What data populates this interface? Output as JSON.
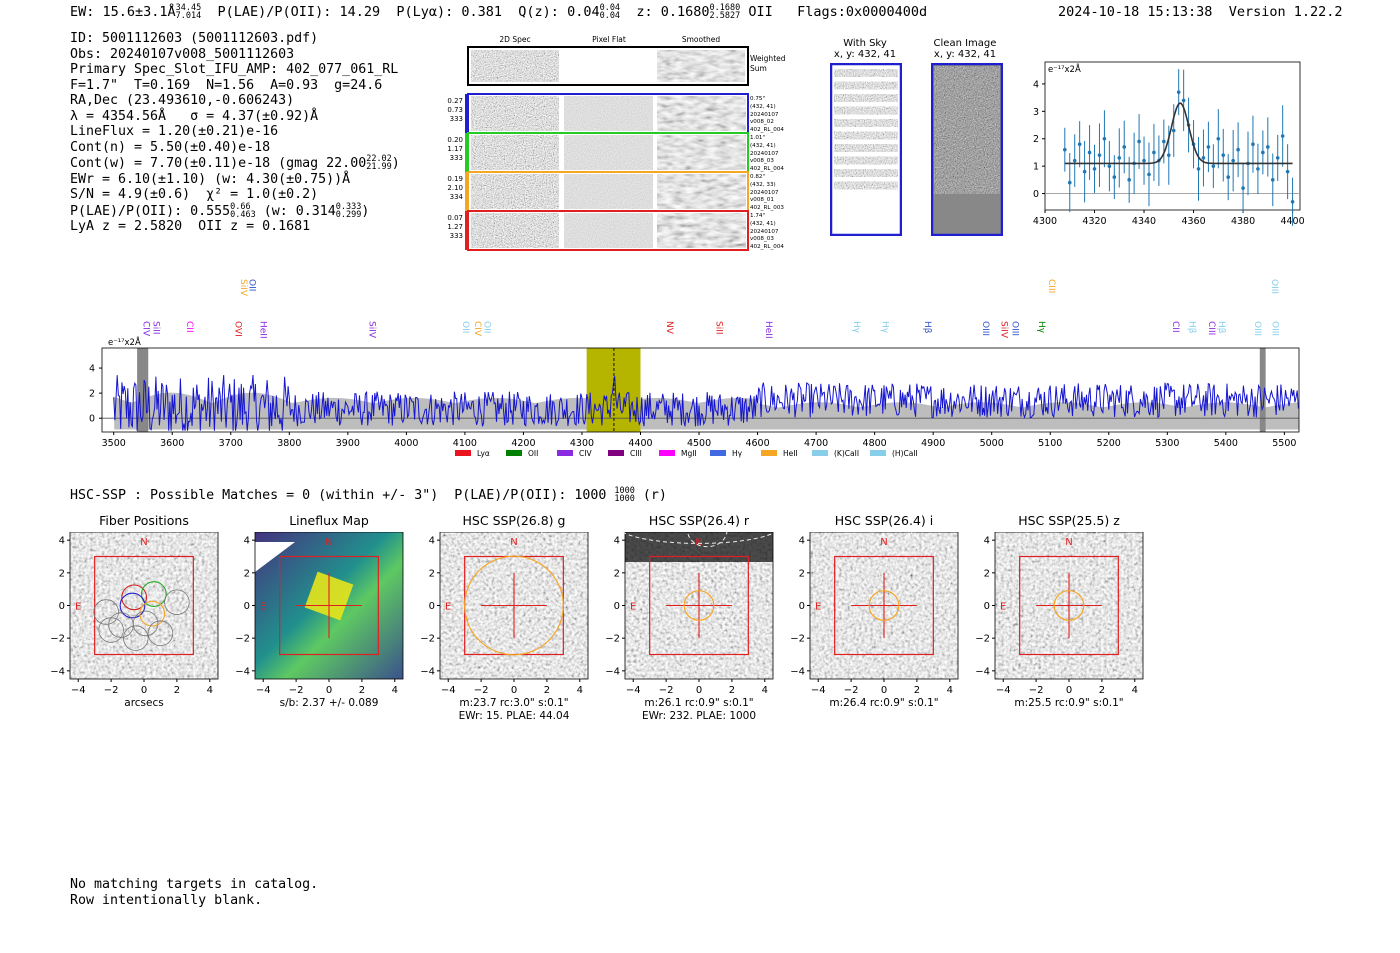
{
  "header": {
    "ew": "EW: 15.6±3.1Å",
    "ew_hi": "34.45",
    "ew_lo": "7.014",
    "plae": "P(LAE)/P(OII): 14.29",
    "plya": "P(Lyα): 0.381",
    "qz": "Q(z): 0.04",
    "qz_hi": "0.04",
    "qz_lo": "0.04",
    "z": "z: 0.1680",
    "z_hi": "0.1680",
    "z_lo": "2.5827",
    "z_line": "OII",
    "flags": "Flags:0x0000400d",
    "datetime": "2024-10-18 15:13:38",
    "version": "Version 1.22.2"
  },
  "info": {
    "l1": "ID: 5001112603 (5001112603.pdf)",
    "l2": "Obs: 20240107v008_5001112603",
    "l3": "Primary Spec_Slot_IFU_AMP: 402_077_061_RL",
    "l4": "F=1.7\"  T=0.169  N=1.56  A=0.93  g=24.6",
    "l5": "RA,Dec (23.493610,-0.606243)",
    "l6": "λ = 4354.56Å   σ = 4.37(±0.92)Å",
    "l7": "LineFlux = 1.20(±0.21)e-16",
    "l8": "Cont(n) = 5.50(±0.40)e-18",
    "l9": "Cont(w) = 7.70(±0.11)e-18 (gmag 22.00",
    "l9_hi": "22.02",
    "l9_lo": "21.99",
    "l10": "EWr = 6.10(±1.10) (w: 4.30(±0.75))Å",
    "l11": "S/N = 4.9(±0.6)  χ² = 1.0(±0.2)",
    "l12": "P(LAE)/P(OII): 0.555",
    "l12_hi": "0.66",
    "l12_lo": "0.463",
    "l12b": "(w: 0.314",
    "l12b_hi": "0.333",
    "l12b_lo": "0.299",
    "l13": "LyA z = 2.5820  OII z = 0.1681"
  },
  "cutouts": {
    "col_2d": "2D Spec",
    "col_flat": "Pixel Flat",
    "col_smooth": "Smoothed",
    "weighted": "Weighted",
    "weighted2": "Sum",
    "rows": [
      {
        "w1": "0.27",
        "w2": "0.73",
        "w3": "333",
        "r1": "0.75\"",
        "r2": "(432, 41)",
        "r3": "20240107",
        "r4": "v008_02",
        "r5": "402_RL_004",
        "color": "#1f1fd0"
      },
      {
        "w1": "0.20",
        "w2": "1.17",
        "w3": "333",
        "r1": "1.01\"",
        "r2": "(432, 41)",
        "r3": "20240107",
        "r4": "v008_03",
        "r5": "402_RL_004",
        "color": "#22cc22"
      },
      {
        "w1": "0.19",
        "w2": "2.10",
        "w3": "334",
        "r1": "0.82\"",
        "r2": "(432, 33)",
        "r3": "20240107",
        "r4": "v008_01",
        "r5": "402_RL_003",
        "color": "#f5a623"
      },
      {
        "w1": "0.07",
        "w2": "1.27",
        "w3": "333",
        "r1": "1.74\"",
        "r2": "(432, 41)",
        "r3": "20240107",
        "r4": "v008_03",
        "r5": "402_RL_004",
        "color": "#e02020"
      }
    ],
    "with_sky": "With Sky",
    "with_sky_xy": "x, y: 432, 41",
    "clean": "Clean Image",
    "clean_xy": "x, y: 432, 41"
  },
  "zoom_chart": {
    "type": "scatter",
    "ylabel": "e⁻¹⁷x2Å",
    "xlim": [
      4300,
      4403
    ],
    "ylim": [
      -0.6,
      4.8
    ],
    "xticks": [
      4300,
      4320,
      4340,
      4360,
      4380,
      4400
    ],
    "yticks": [
      0,
      1,
      2,
      3,
      4
    ],
    "x": [
      4308,
      4310,
      4312,
      4314,
      4316,
      4318,
      4320,
      4322,
      4324,
      4326,
      4328,
      4330,
      4332,
      4334,
      4336,
      4338,
      4340,
      4342,
      4344,
      4346,
      4348,
      4350,
      4352,
      4354,
      4356,
      4358,
      4360,
      4362,
      4364,
      4366,
      4368,
      4370,
      4372,
      4374,
      4376,
      4378,
      4380,
      4382,
      4384,
      4386,
      4388,
      4390,
      4392,
      4394,
      4396,
      4398,
      4400
    ],
    "y": [
      1.6,
      0.4,
      1.2,
      1.8,
      0.8,
      1.5,
      0.9,
      1.4,
      2.0,
      1.0,
      0.6,
      1.3,
      1.7,
      0.5,
      1.1,
      1.9,
      1.2,
      0.7,
      1.5,
      1.2,
      1.9,
      1.4,
      2.3,
      3.7,
      3.4,
      2.5,
      1.8,
      0.9,
      1.3,
      1.7,
      1.0,
      2.0,
      1.4,
      0.6,
      1.2,
      1.6,
      0.2,
      1.1,
      1.8,
      0.9,
      1.5,
      1.7,
      0.5,
      1.3,
      2.1,
      0.8,
      -0.3
    ],
    "err": 1.0,
    "fit": {
      "base": 1.1,
      "amp": 2.2,
      "center": 4354.6,
      "sigma": 3.5
    }
  },
  "lines_top": [
    {
      "name": "SiIV",
      "x": 3712,
      "color": "#f5a623"
    },
    {
      "name": "OII",
      "x": 3727,
      "color": "#3355cc"
    },
    {
      "name": "CIII",
      "x": 5093,
      "color": "#f5a623"
    },
    {
      "name": "OIII",
      "x": 5474,
      "color": "#87ceeb"
    }
  ],
  "lines_mid": [
    {
      "name": "CIV",
      "x": 3546,
      "color": "#8a2be2"
    },
    {
      "name": "SiII",
      "x": 3563,
      "color": "#8a2be2"
    },
    {
      "name": "CII",
      "x": 3620,
      "color": "#ff00ff"
    },
    {
      "name": "OVI",
      "x": 3703,
      "color": "#e02020"
    },
    {
      "name": "HeII",
      "x": 3746,
      "color": "#8a2be2"
    },
    {
      "name": "SiIV",
      "x": 3932,
      "color": "#8a2be2"
    },
    {
      "name": "OII",
      "x": 4092,
      "color": "#87ceeb"
    },
    {
      "name": "CIV",
      "x": 4112,
      "color": "#f5a623"
    },
    {
      "name": "OII",
      "x": 4128,
      "color": "#87ceeb"
    },
    {
      "name": "NV",
      "x": 4440,
      "color": "#e02020"
    },
    {
      "name": "SiII",
      "x": 4525,
      "color": "#e02020"
    },
    {
      "name": "HeII",
      "x": 4609,
      "color": "#8a2be2"
    },
    {
      "name": "Hγ",
      "x": 4760,
      "color": "#87ceeb"
    },
    {
      "name": "Hγ",
      "x": 4808,
      "color": "#87ceeb"
    },
    {
      "name": "Hβ",
      "x": 4881,
      "color": "#3355cc"
    },
    {
      "name": "OIII",
      "x": 4980,
      "color": "#3355cc"
    },
    {
      "name": "SiIV",
      "x": 5012,
      "color": "#e02020"
    },
    {
      "name": "OIII",
      "x": 5030,
      "color": "#3355cc"
    },
    {
      "name": "Hγ",
      "x": 5076,
      "color": "#008000"
    },
    {
      "name": "CII",
      "x": 5305,
      "color": "#8a2be2"
    },
    {
      "name": "Hβ",
      "x": 5333,
      "color": "#87ceeb"
    },
    {
      "name": "CIII",
      "x": 5366,
      "color": "#8a2be2"
    },
    {
      "name": "Hβ",
      "x": 5383,
      "color": "#87ceeb"
    },
    {
      "name": "OIII",
      "x": 5445,
      "color": "#87ceeb"
    },
    {
      "name": "OIII",
      "x": 5475,
      "color": "#87ceeb"
    }
  ],
  "spectrum_chart": {
    "type": "line",
    "ylabel": "e⁻¹⁷x2Å",
    "xlim": [
      3480,
      5525
    ],
    "ylim": [
      -1.1,
      5.6
    ],
    "xticks": [
      3500,
      3600,
      3700,
      3800,
      3900,
      4000,
      4100,
      4200,
      4300,
      4400,
      4500,
      4600,
      4700,
      4800,
      4900,
      5000,
      5100,
      5200,
      5300,
      5400,
      5500
    ],
    "yticks": [
      0,
      2,
      4
    ],
    "highlight": [
      4308,
      4400
    ],
    "marker": 4354.6,
    "masked": [
      [
        3540,
        3559
      ],
      [
        5458,
        5468
      ]
    ],
    "legend": [
      {
        "label": "Lyα",
        "color": "#e8141e"
      },
      {
        "label": "OII",
        "color": "#008000"
      },
      {
        "label": "CIV",
        "color": "#8a2be2"
      },
      {
        "label": "CIII",
        "color": "#800080"
      },
      {
        "label": "MgII",
        "color": "#ff00ff"
      },
      {
        "label": "Hγ",
        "color": "#4169e1"
      },
      {
        "label": "HeII",
        "color": "#f5a623"
      },
      {
        "label": "(K)CaII",
        "color": "#87ceeb"
      },
      {
        "label": "(H)CaII",
        "color": "#87ceeb"
      }
    ]
  },
  "hsc": {
    "text": "HSC-SSP : Possible Matches = 0 (within +/- 3\")  P(LAE)/P(OII): 1000",
    "hi": "1000",
    "lo": "1000",
    "tail": "(r)"
  },
  "thumbs": [
    {
      "title": "Fiber Positions",
      "cap1": "arcsecs",
      "cap2": ""
    },
    {
      "title": "Lineflux Map",
      "cap1": "s/b: 2.37 +/- 0.089",
      "cap2": ""
    },
    {
      "title": "HSC SSP(26.8) g",
      "cap1": "m:23.7 rc:3.0\"  s:0.1\"",
      "cap2": "EWr: 15. PLAE: 44.04"
    },
    {
      "title": "HSC SSP(26.4) r",
      "cap1": "m:26.1 rc:0.9\"  s:0.1\"",
      "cap2": "EWr: 232. PLAE: 1000"
    },
    {
      "title": "HSC SSP(26.4) i",
      "cap1": "m:26.4 rc:0.9\"  s:0.1\"",
      "cap2": ""
    },
    {
      "title": "HSC SSP(25.5) z",
      "cap1": "m:25.5 rc:0.9\"  s:0.1\"",
      "cap2": ""
    }
  ],
  "thumb_ticks": [
    "−4",
    "−2",
    "0",
    "2",
    "4"
  ],
  "compass": {
    "n": "N",
    "e": "E"
  },
  "footer": {
    "l1": "No matching targets in catalog.",
    "l2": "Row intentionally blank."
  }
}
